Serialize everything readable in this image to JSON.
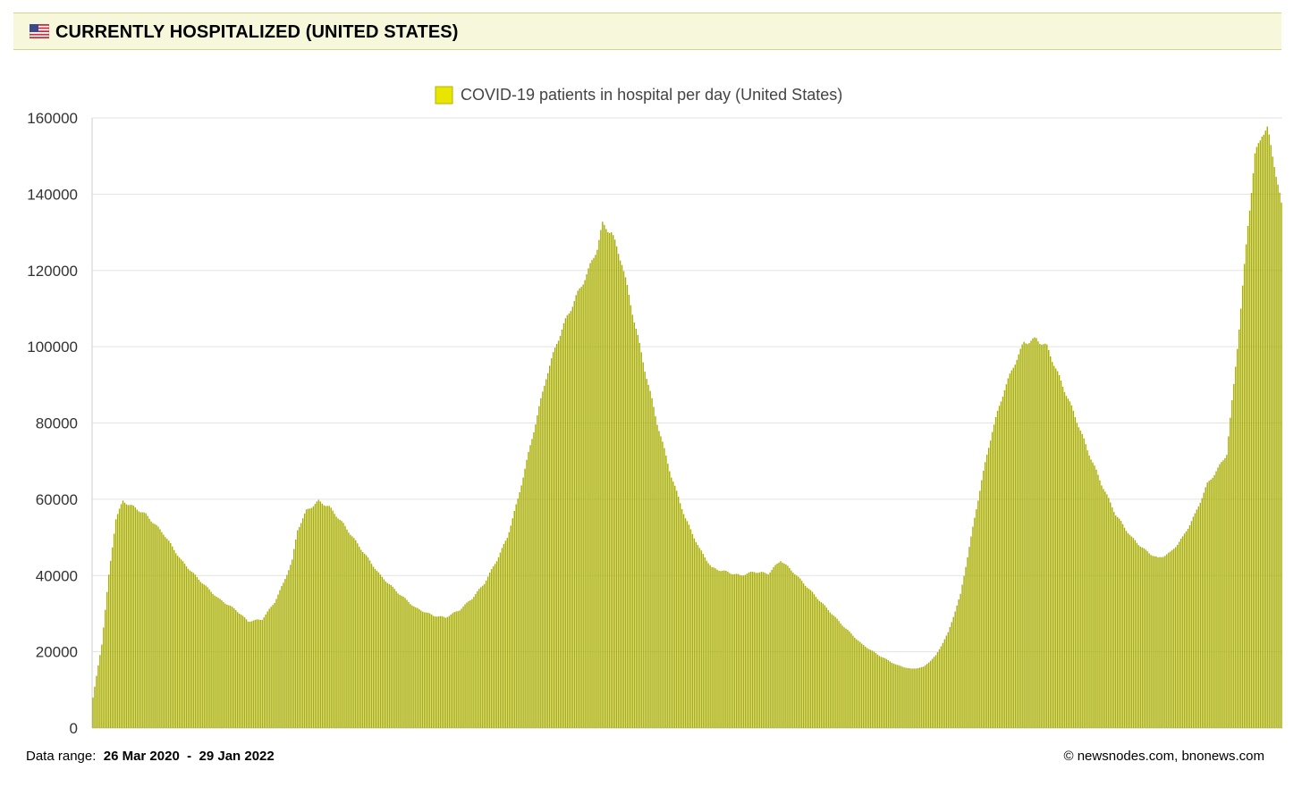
{
  "header": {
    "title": "CURRENTLY HOSPITALIZED (UNITED STATES)",
    "flag_icon": "us-flag-icon"
  },
  "footer": {
    "range_label": "Data range:",
    "range_start": "26 Mar 2020",
    "range_sep": "-",
    "range_end": "29 Jan 2022",
    "credit": "©  newsnodes.com, bnonews.com"
  },
  "colors": {
    "bar_dark": "#a8ad00",
    "bar_light": "#d9df4f",
    "legend": "#e8e600",
    "grid": "#e3e3e3"
  },
  "chart_data": {
    "type": "bar",
    "title": "",
    "legend": {
      "label": "COVID-19 patients in hospital per day (United States)",
      "position": "top"
    },
    "xlabel": "",
    "ylabel": "",
    "ylim": [
      0,
      160000
    ],
    "yticks": [
      0,
      20000,
      40000,
      60000,
      80000,
      100000,
      120000,
      140000,
      160000
    ],
    "grid": true,
    "x_start": "2020-03-26",
    "x_end": "2022-01-29",
    "keypoints": [
      [
        "2020-03-26",
        8000
      ],
      [
        "2020-03-31",
        22000
      ],
      [
        "2020-04-04",
        40000
      ],
      [
        "2020-04-08",
        55000
      ],
      [
        "2020-04-12",
        59500
      ],
      [
        "2020-04-18",
        58000
      ],
      [
        "2020-04-25",
        56000
      ],
      [
        "2020-05-05",
        51000
      ],
      [
        "2020-05-15",
        44000
      ],
      [
        "2020-05-25",
        39000
      ],
      [
        "2020-06-05",
        34000
      ],
      [
        "2020-06-15",
        31000
      ],
      [
        "2020-06-22",
        28000
      ],
      [
        "2020-06-30",
        28500
      ],
      [
        "2020-07-07",
        33000
      ],
      [
        "2020-07-12",
        38000
      ],
      [
        "2020-07-17",
        44000
      ],
      [
        "2020-07-20",
        52000
      ],
      [
        "2020-07-25",
        57000
      ],
      [
        "2020-08-01",
        59500
      ],
      [
        "2020-08-07",
        58000
      ],
      [
        "2020-08-15",
        53500
      ],
      [
        "2020-08-25",
        47000
      ],
      [
        "2020-09-05",
        40000
      ],
      [
        "2020-09-15",
        35500
      ],
      [
        "2020-09-25",
        31500
      ],
      [
        "2020-10-05",
        29500
      ],
      [
        "2020-10-12",
        29000
      ],
      [
        "2020-10-20",
        31000
      ],
      [
        "2020-10-27",
        34000
      ],
      [
        "2020-11-03",
        38000
      ],
      [
        "2020-11-10",
        44000
      ],
      [
        "2020-11-16",
        50000
      ],
      [
        "2020-11-22",
        60000
      ],
      [
        "2020-11-28",
        72000
      ],
      [
        "2020-12-03",
        82000
      ],
      [
        "2020-12-08",
        92000
      ],
      [
        "2020-12-14",
        101000
      ],
      [
        "2020-12-20",
        108000
      ],
      [
        "2020-12-26",
        114000
      ],
      [
        "2021-01-01",
        120000
      ],
      [
        "2021-01-06",
        126000
      ],
      [
        "2021-01-09",
        132000
      ],
      [
        "2021-01-14",
        130000
      ],
      [
        "2021-01-20",
        122000
      ],
      [
        "2021-01-26",
        109000
      ],
      [
        "2021-02-02",
        94000
      ],
      [
        "2021-02-09",
        80000
      ],
      [
        "2021-02-17",
        66000
      ],
      [
        "2021-02-25",
        55000
      ],
      [
        "2021-03-05",
        47000
      ],
      [
        "2021-03-12",
        42000
      ],
      [
        "2021-03-20",
        41000
      ],
      [
        "2021-03-28",
        40000
      ],
      [
        "2021-04-05",
        41000
      ],
      [
        "2021-04-13",
        40500
      ],
      [
        "2021-04-20",
        44000
      ],
      [
        "2021-04-27",
        41000
      ],
      [
        "2021-05-05",
        37000
      ],
      [
        "2021-05-15",
        32000
      ],
      [
        "2021-05-25",
        27000
      ],
      [
        "2021-06-05",
        22000
      ],
      [
        "2021-06-15",
        19000
      ],
      [
        "2021-06-25",
        16500
      ],
      [
        "2021-07-03",
        15500
      ],
      [
        "2021-07-10",
        16000
      ],
      [
        "2021-07-17",
        19000
      ],
      [
        "2021-07-24",
        25000
      ],
      [
        "2021-07-31",
        35000
      ],
      [
        "2021-08-06",
        50000
      ],
      [
        "2021-08-12",
        65000
      ],
      [
        "2021-08-18",
        78000
      ],
      [
        "2021-08-25",
        89000
      ],
      [
        "2021-09-01",
        97000
      ],
      [
        "2021-09-05",
        101000
      ],
      [
        "2021-09-12",
        102000
      ],
      [
        "2021-09-18",
        100000
      ],
      [
        "2021-09-25",
        92000
      ],
      [
        "2021-10-03",
        83000
      ],
      [
        "2021-10-11",
        73000
      ],
      [
        "2021-10-19",
        64000
      ],
      [
        "2021-10-27",
        56000
      ],
      [
        "2021-11-05",
        50000
      ],
      [
        "2021-11-13",
        46500
      ],
      [
        "2021-11-20",
        44500
      ],
      [
        "2021-11-27",
        46000
      ],
      [
        "2021-12-04",
        50000
      ],
      [
        "2021-12-11",
        56000
      ],
      [
        "2021-12-18",
        64000
      ],
      [
        "2021-12-24",
        68000
      ],
      [
        "2021-12-29",
        72000
      ],
      [
        "2022-01-02",
        90000
      ],
      [
        "2022-01-06",
        110000
      ],
      [
        "2022-01-10",
        132000
      ],
      [
        "2022-01-14",
        150000
      ],
      [
        "2022-01-18",
        156000
      ],
      [
        "2022-01-21",
        157000
      ],
      [
        "2022-01-25",
        148000
      ],
      [
        "2022-01-29",
        137000
      ]
    ]
  }
}
